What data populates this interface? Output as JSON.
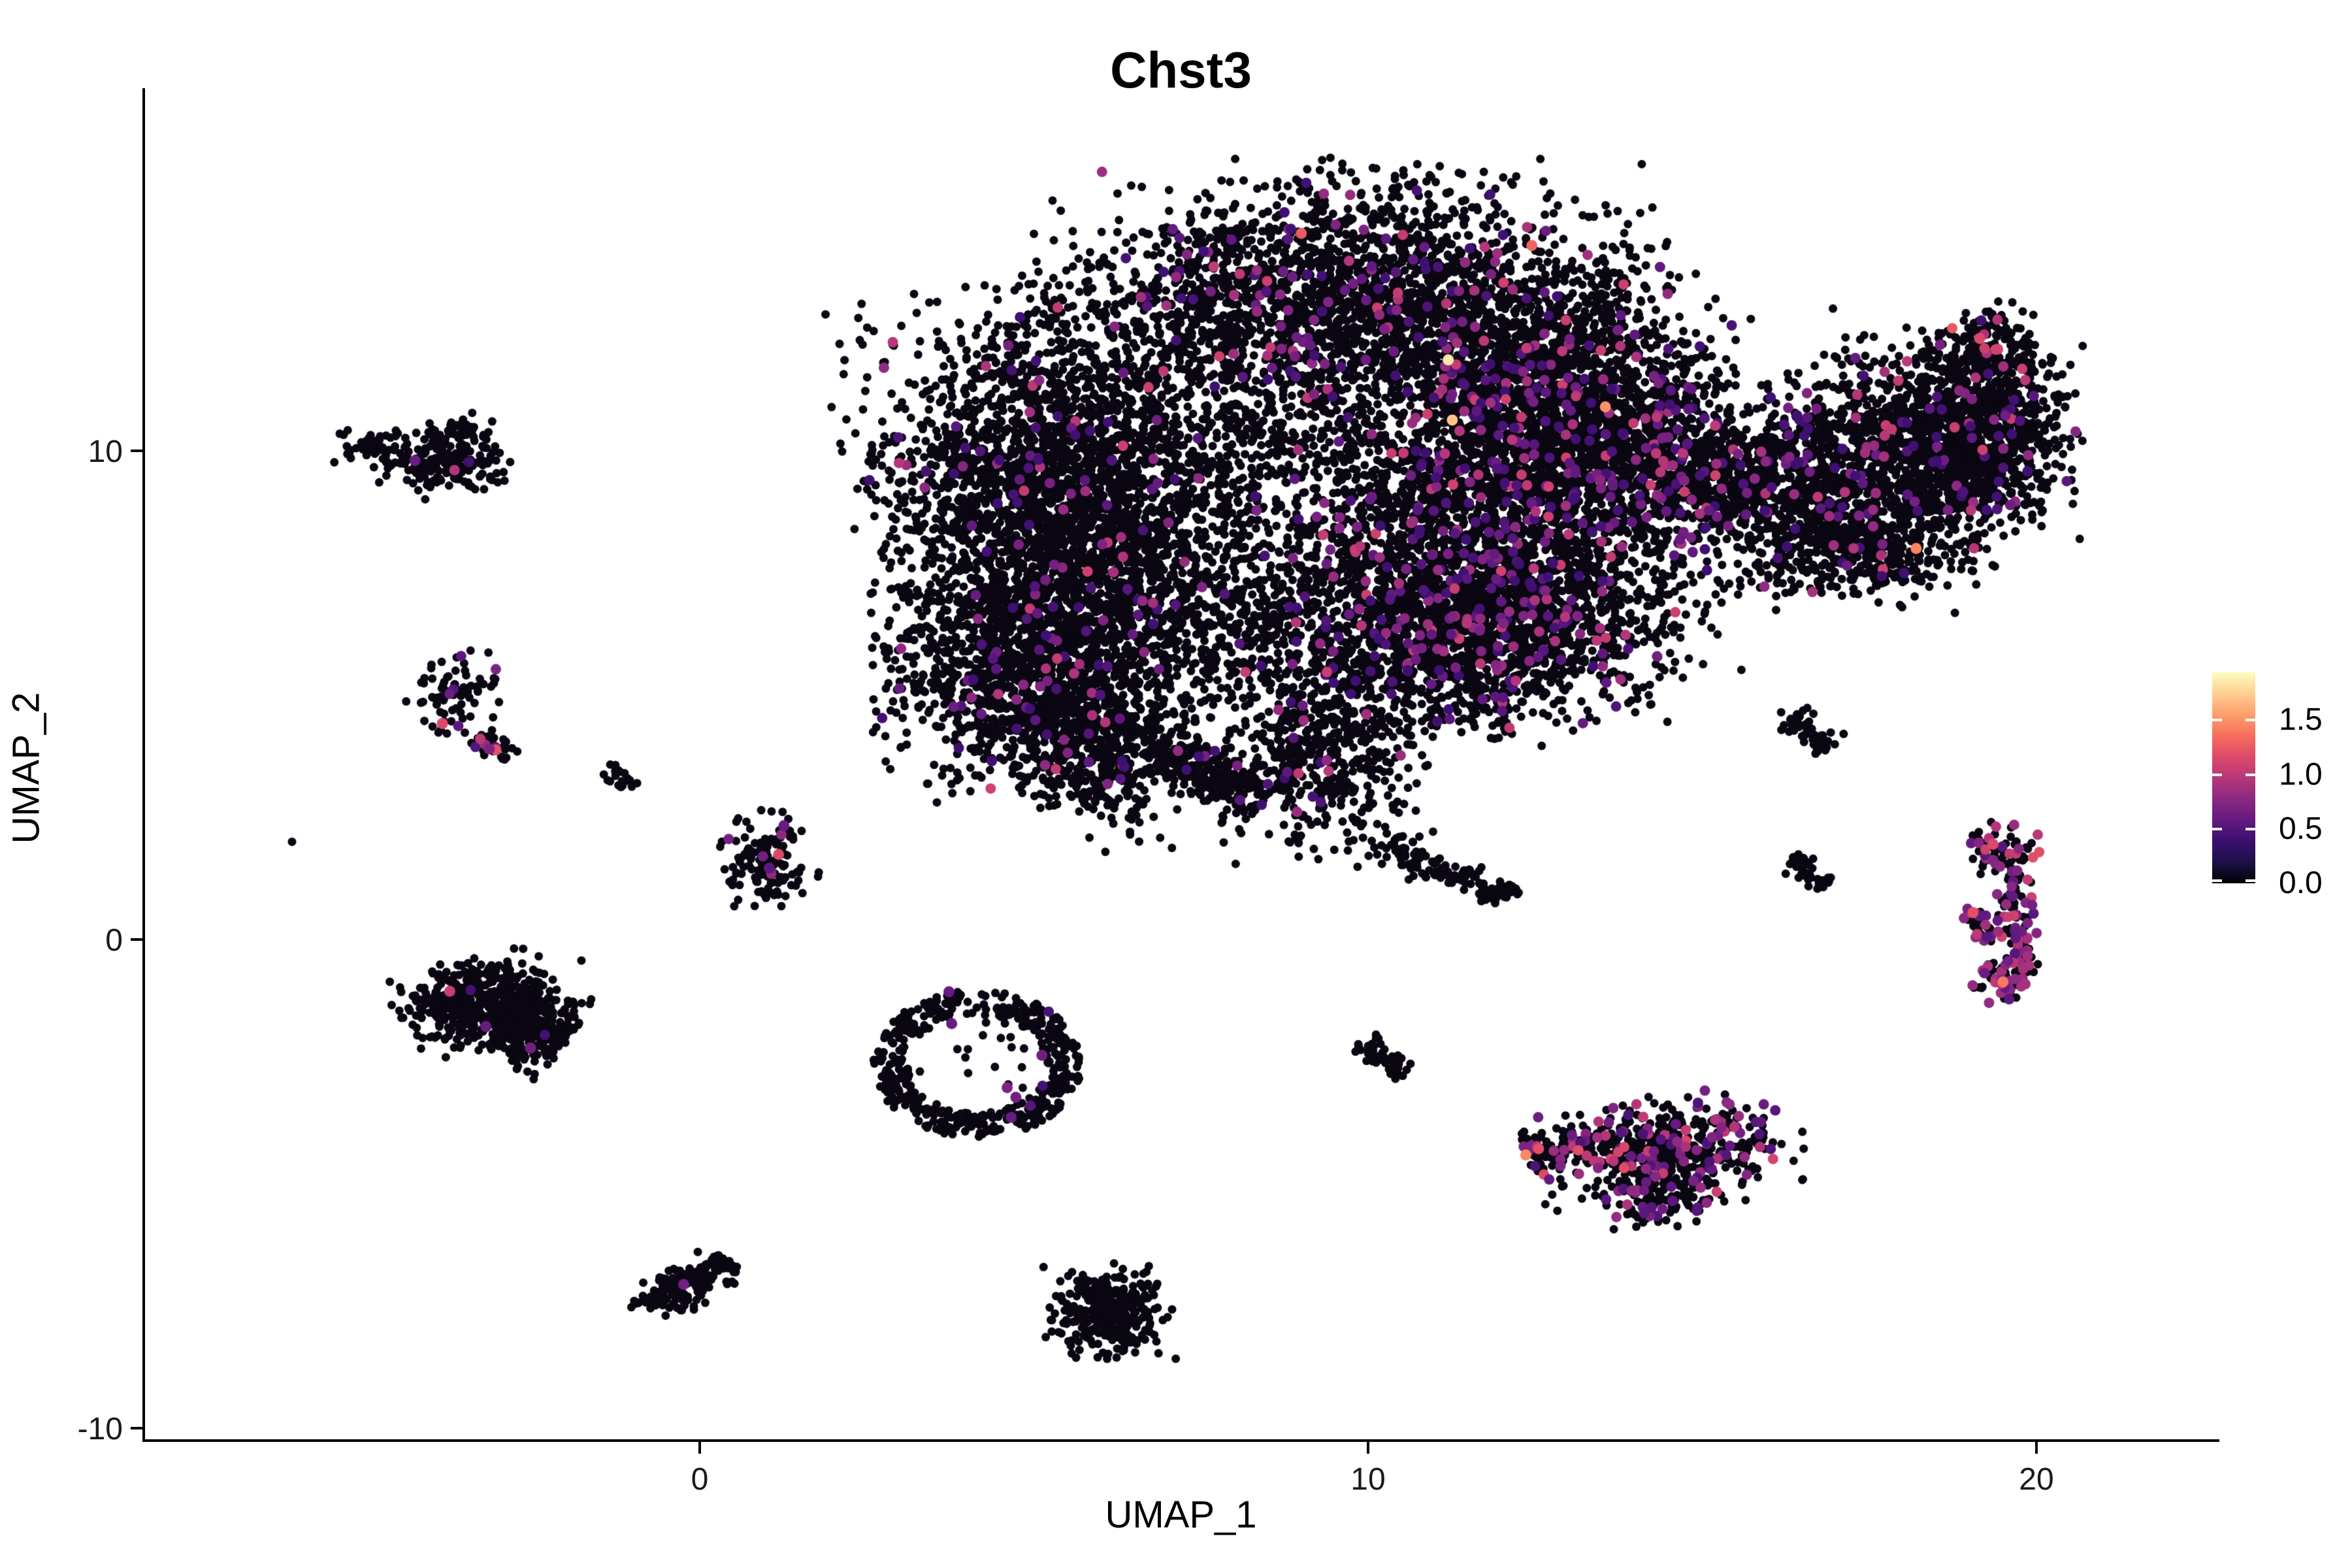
{
  "chart_data": {
    "type": "scatter",
    "title": "Chst3",
    "xlabel": "UMAP_1",
    "ylabel": "UMAP_2",
    "xlim": [
      -8.3,
      22.7
    ],
    "ylim": [
      -10.3,
      17.4
    ],
    "x_ticks": [
      {
        "v": 0,
        "label": "0"
      },
      {
        "v": 10,
        "label": "10"
      },
      {
        "v": 20,
        "label": "20"
      }
    ],
    "y_ticks": [
      {
        "v": 10,
        "label": "10"
      },
      {
        "v": 0,
        "label": "0"
      },
      {
        "v": -10,
        "label": "-10"
      }
    ],
    "grid": false,
    "legend": {
      "position": "right",
      "domain": [
        0,
        1.94
      ],
      "tick_values": [
        1.5,
        1.0,
        0.5,
        0.0
      ],
      "tick_labels": [
        "1.5",
        "1.0",
        "0.5",
        "0.0"
      ],
      "colormap_name": "magma",
      "colormap": [
        [
          0.0,
          "#000004"
        ],
        [
          0.1,
          "#1D1147"
        ],
        [
          0.2,
          "#3B0F70"
        ],
        [
          0.3,
          "#641A80"
        ],
        [
          0.4,
          "#8C2981"
        ],
        [
          0.5,
          "#B73779"
        ],
        [
          0.6,
          "#DE4968"
        ],
        [
          0.7,
          "#F76F5C"
        ],
        [
          0.8,
          "#FE9F6D"
        ],
        [
          0.9,
          "#FECF92"
        ],
        [
          1.0,
          "#FCFDBF"
        ]
      ]
    },
    "point_style": {
      "black_color": "#0A0612",
      "radius": 6.5,
      "colored_radius": 8,
      "highlight_radius": 8.5
    },
    "clusters": [
      {
        "name": "dome",
        "t": "g",
        "cx": 9.7,
        "cy": 13.0,
        "sx": 2.05,
        "sy": 1.25,
        "n": 2400,
        "cf": 0.06
      },
      {
        "name": "dome-right",
        "t": "g",
        "cx": 12.5,
        "cy": 11.5,
        "sx": 1.25,
        "sy": 1.1,
        "n": 1100,
        "cf": 0.07
      },
      {
        "name": "left-lobe",
        "t": "g",
        "cx": 5.4,
        "cy": 8.8,
        "sx": 1.3,
        "sy": 2.0,
        "n": 3000,
        "cf": 0.03,
        "rot": 8
      },
      {
        "name": "left-lobe-low",
        "t": "g",
        "cx": 4.9,
        "cy": 5.4,
        "sx": 1.0,
        "sy": 1.1,
        "n": 1100,
        "cf": 0.03
      },
      {
        "name": "tail-left",
        "t": "g",
        "cx": 5.95,
        "cy": 3.8,
        "sx": 0.55,
        "sy": 0.85,
        "n": 420,
        "cf": 0.03
      },
      {
        "name": "tail-right",
        "t": "s",
        "x1": 6.9,
        "y1": 4.1,
        "x2": 8.4,
        "y2": 2.7,
        "w": 0.3,
        "n": 260,
        "cf": 0.04
      },
      {
        "name": "mid-sparse",
        "t": "g",
        "cx": 8.6,
        "cy": 9.3,
        "sx": 1.7,
        "sy": 1.55,
        "n": 650,
        "cf": 0.05
      },
      {
        "name": "right-mid",
        "t": "g",
        "cx": 12.2,
        "cy": 8.6,
        "sx": 1.55,
        "sy": 1.45,
        "n": 2100,
        "cf": 0.09
      },
      {
        "name": "lower-right",
        "t": "g",
        "cx": 11.6,
        "cy": 6.3,
        "sx": 1.3,
        "sy": 0.95,
        "n": 1500,
        "cf": 0.09,
        "rot": -8
      },
      {
        "name": "lower-mid",
        "t": "g",
        "cx": 9.4,
        "cy": 4.1,
        "sx": 0.75,
        "sy": 1.1,
        "n": 550,
        "cf": 0.05
      },
      {
        "name": "upper-right-notch",
        "t": "g",
        "cx": 14.0,
        "cy": 10.3,
        "sx": 0.85,
        "sy": 1.0,
        "n": 600,
        "cf": 0.08
      },
      {
        "name": "bridge",
        "t": "g",
        "cx": 15.4,
        "cy": 9.4,
        "sx": 0.6,
        "sy": 0.55,
        "n": 300,
        "cf": 0.08
      },
      {
        "name": "mid-fill",
        "t": "g",
        "cx": 8.1,
        "cy": 6.4,
        "sx": 0.95,
        "sy": 0.95,
        "n": 350,
        "cf": 0.04
      },
      {
        "name": "wing-left",
        "t": "g",
        "cx": 16.8,
        "cy": 9.2,
        "sx": 0.85,
        "sy": 0.95,
        "n": 650,
        "cf": 0.05
      },
      {
        "name": "wing-mid",
        "t": "g",
        "cx": 18.0,
        "cy": 9.9,
        "sx": 0.95,
        "sy": 1.1,
        "n": 900,
        "cf": 0.05,
        "rot": -20
      },
      {
        "name": "wing-right",
        "t": "g",
        "cx": 19.2,
        "cy": 10.4,
        "sx": 0.65,
        "sy": 1.0,
        "n": 750,
        "cf": 0.06
      },
      {
        "name": "wing-tip",
        "t": "g",
        "cx": 19.25,
        "cy": 12.1,
        "sx": 0.38,
        "sy": 0.42,
        "n": 130,
        "cf": 0.1,
        "vb": 0.9,
        "vs": 0.4
      },
      {
        "name": "wing-low",
        "t": "g",
        "cx": 17.2,
        "cy": 7.85,
        "sx": 0.85,
        "sy": 0.5,
        "n": 280,
        "cf": 0.04
      },
      {
        "name": "mid-streak-a",
        "t": "s",
        "x1": 10.25,
        "y1": 2.0,
        "x2": 10.9,
        "y2": 1.45,
        "w": 0.16,
        "n": 45,
        "cf": 0
      },
      {
        "name": "mid-streak-b",
        "t": "s",
        "x1": 10.9,
        "y1": 1.45,
        "x2": 11.6,
        "y2": 1.2,
        "w": 0.16,
        "n": 45,
        "cf": 0
      },
      {
        "name": "mid-streak-c",
        "t": "s",
        "x1": 11.6,
        "y1": 1.2,
        "x2": 12.0,
        "y2": 0.85,
        "w": 0.15,
        "n": 35,
        "cf": 0
      },
      {
        "name": "mid-streak-d",
        "t": "s",
        "x1": 12.0,
        "y1": 0.85,
        "x2": 12.1,
        "y2": 1.15,
        "w": 0.13,
        "n": 18,
        "cf": 0
      },
      {
        "name": "topleft-main",
        "t": "g",
        "cx": -3.85,
        "cy": 9.7,
        "sx": 0.45,
        "sy": 0.3,
        "n": 170,
        "cf": 0.006
      },
      {
        "name": "topleft-west",
        "t": "g",
        "cx": -4.85,
        "cy": 10.05,
        "sx": 0.27,
        "sy": 0.18,
        "n": 50,
        "cf": 0
      },
      {
        "name": "topleft-spur",
        "t": "g",
        "cx": -3.6,
        "cy": 10.45,
        "sx": 0.22,
        "sy": 0.17,
        "n": 40,
        "cf": 0
      },
      {
        "name": "midleft-blob",
        "t": "g",
        "cx": -3.7,
        "cy": 5.1,
        "sx": 0.3,
        "sy": 0.38,
        "n": 75,
        "cf": 0.05,
        "vb": 0.5,
        "vs": 0.4
      },
      {
        "name": "midleft-streak",
        "t": "s",
        "x1": -3.3,
        "y1": 4.15,
        "x2": -2.85,
        "y2": 3.72,
        "w": 0.14,
        "n": 32,
        "cf": 0.1,
        "vb": 0.5,
        "vs": 0.5
      },
      {
        "name": "tiny-streak",
        "t": "s",
        "x1": -1.38,
        "y1": 3.55,
        "x2": -1.05,
        "y2": 3.1,
        "w": 0.1,
        "n": 22,
        "cf": 0
      },
      {
        "name": "cluster-b",
        "t": "g",
        "cx": 1.0,
        "cy": 1.65,
        "sx": 0.35,
        "sy": 0.42,
        "n": 135,
        "cf": 0.02,
        "vb": 0.5,
        "vs": 0.4
      },
      {
        "name": "wedge-main",
        "t": "g",
        "cx": -3.35,
        "cy": -1.3,
        "sx": 0.52,
        "sy": 0.42,
        "n": 430,
        "cf": 0.004,
        "rot": 12
      },
      {
        "name": "wedge-ext",
        "t": "s",
        "x1": -2.9,
        "y1": -1.6,
        "x2": -2.0,
        "y2": -2.1,
        "w": 0.4,
        "n": 260,
        "cf": 0.004
      },
      {
        "name": "ring",
        "t": "r",
        "cx": 4.15,
        "cy": -2.55,
        "rx": 1.3,
        "ry": 1.25,
        "jit": 0.2,
        "n": 430,
        "cf": 0.005
      },
      {
        "name": "ring-inner",
        "t": "g",
        "cx": 4.15,
        "cy": -2.5,
        "sx": 0.55,
        "sy": 0.5,
        "n": 17,
        "cf": 0
      },
      {
        "name": "diag-streak",
        "t": "s",
        "x1": 9.92,
        "y1": -2.05,
        "x2": 10.55,
        "y2": -2.8,
        "w": 0.13,
        "n": 55,
        "cf": 0
      },
      {
        "name": "elong-tail",
        "t": "s",
        "x1": 12.35,
        "y1": -4.35,
        "x2": 13.35,
        "y2": -4.1,
        "w": 0.18,
        "n": 90,
        "cf": 0.07,
        "vb": 0.6,
        "vs": 0.5
      },
      {
        "name": "elong-body",
        "t": "g",
        "cx": 14.5,
        "cy": -4.35,
        "sx": 0.85,
        "sy": 0.5,
        "n": 500,
        "cf": 0.22,
        "vb": 0.45,
        "vs": 0.75,
        "pw": 1.5,
        "rot": 7
      },
      {
        "name": "elong-lobe",
        "t": "g",
        "cx": 14.3,
        "cy": -5.3,
        "sx": 0.38,
        "sy": 0.3,
        "n": 95,
        "cf": 0.18,
        "vb": 0.5,
        "vs": 0.4
      },
      {
        "name": "bottom-blob",
        "t": "g",
        "cx": 6.15,
        "cy": -7.65,
        "sx": 0.42,
        "sy": 0.45,
        "n": 330,
        "cf": 0
      },
      {
        "name": "bottom-streak",
        "t": "s",
        "x1": -0.55,
        "y1": -7.35,
        "x2": 0.45,
        "y2": -6.55,
        "w": 0.2,
        "n": 110,
        "cf": 0
      },
      {
        "name": "bottomleft-blob",
        "t": "g",
        "cx": -0.55,
        "cy": -7.25,
        "sx": 0.2,
        "sy": 0.22,
        "n": 45,
        "cf": 0
      },
      {
        "name": "right-streak",
        "t": "s",
        "x1": 16.3,
        "y1": 4.55,
        "x2": 16.9,
        "y2": 3.9,
        "w": 0.16,
        "n": 50,
        "cf": 0
      },
      {
        "name": "rv-top",
        "t": "g",
        "cx": 19.45,
        "cy": 1.75,
        "sx": 0.3,
        "sy": 0.28,
        "n": 60,
        "cf": 0.45,
        "vb": 0.5,
        "vs": 0.7,
        "pw": 1
      },
      {
        "name": "rv-chain",
        "t": "s",
        "x1": 19.68,
        "y1": 1.35,
        "x2": 19.78,
        "y2": -0.35,
        "w": 0.14,
        "n": 65,
        "cf": 0.5,
        "vb": 0.5,
        "vs": 0.6,
        "pw": 1
      },
      {
        "name": "rv-branch",
        "t": "s",
        "x1": 18.95,
        "y1": 0.62,
        "x2": 19.35,
        "y2": -0.02,
        "w": 0.13,
        "n": 34,
        "cf": 0.45,
        "vb": 0.5,
        "vs": 0.5,
        "pw": 1
      },
      {
        "name": "rv-bottom",
        "t": "g",
        "cx": 19.5,
        "cy": -0.72,
        "sx": 0.3,
        "sy": 0.26,
        "n": 65,
        "cf": 0.45,
        "vb": 0.5,
        "vs": 0.6,
        "pw": 1
      },
      {
        "name": "se-streak",
        "t": "s",
        "x1": 16.35,
        "y1": 1.7,
        "x2": 16.85,
        "y2": 1.05,
        "w": 0.13,
        "n": 40,
        "cf": 0
      }
    ],
    "singles": [
      [
        -6.1,
        2.0
      ],
      [
        -1.77,
        -0.43
      ],
      [
        16.18,
        4.65
      ]
    ],
    "highlights": [
      [
        11.2,
        11.86,
        1.85
      ],
      [
        11.26,
        10.63,
        1.7
      ],
      [
        12.45,
        14.2,
        1.3
      ],
      [
        9.0,
        14.45,
        1.25
      ],
      [
        13.55,
        10.9,
        1.5
      ],
      [
        18.2,
        8.0,
        1.45
      ],
      [
        19.15,
        12.3,
        1.15
      ],
      [
        19.42,
        12.08,
        1.1
      ],
      [
        19.05,
        0.55,
        1.2
      ],
      [
        19.35,
        1.95,
        1.15
      ],
      [
        19.5,
        -0.87,
        1.4
      ],
      [
        12.36,
        -4.41,
        1.45
      ],
      [
        12.55,
        -4.28,
        1.2
      ],
      [
        -3.85,
        4.42,
        1.15
      ],
      [
        -3.05,
        3.88,
        1.2
      ],
      [
        -3.15,
        3.9,
        0.7
      ],
      [
        -3.74,
        -1.06,
        1.05
      ],
      [
        -3.2,
        -1.78,
        0.6
      ],
      [
        -2.53,
        -2.22,
        0.65
      ],
      [
        1.18,
        1.74,
        1.15
      ],
      [
        1.26,
        2.33,
        0.6
      ],
      [
        1.04,
        1.46,
        0.55
      ],
      [
        -4.26,
        9.8,
        0.6
      ],
      [
        -0.24,
        -7.06,
        0.65
      ],
      [
        3.73,
        -1.07,
        0.6
      ],
      [
        3.77,
        -1.72,
        0.6
      ],
      [
        5.12,
        -2.37,
        0.65
      ],
      [
        4.6,
        -3.03,
        0.7
      ],
      [
        4.73,
        -3.23,
        0.65
      ],
      [
        4.66,
        -3.64,
        0.6
      ]
    ]
  }
}
